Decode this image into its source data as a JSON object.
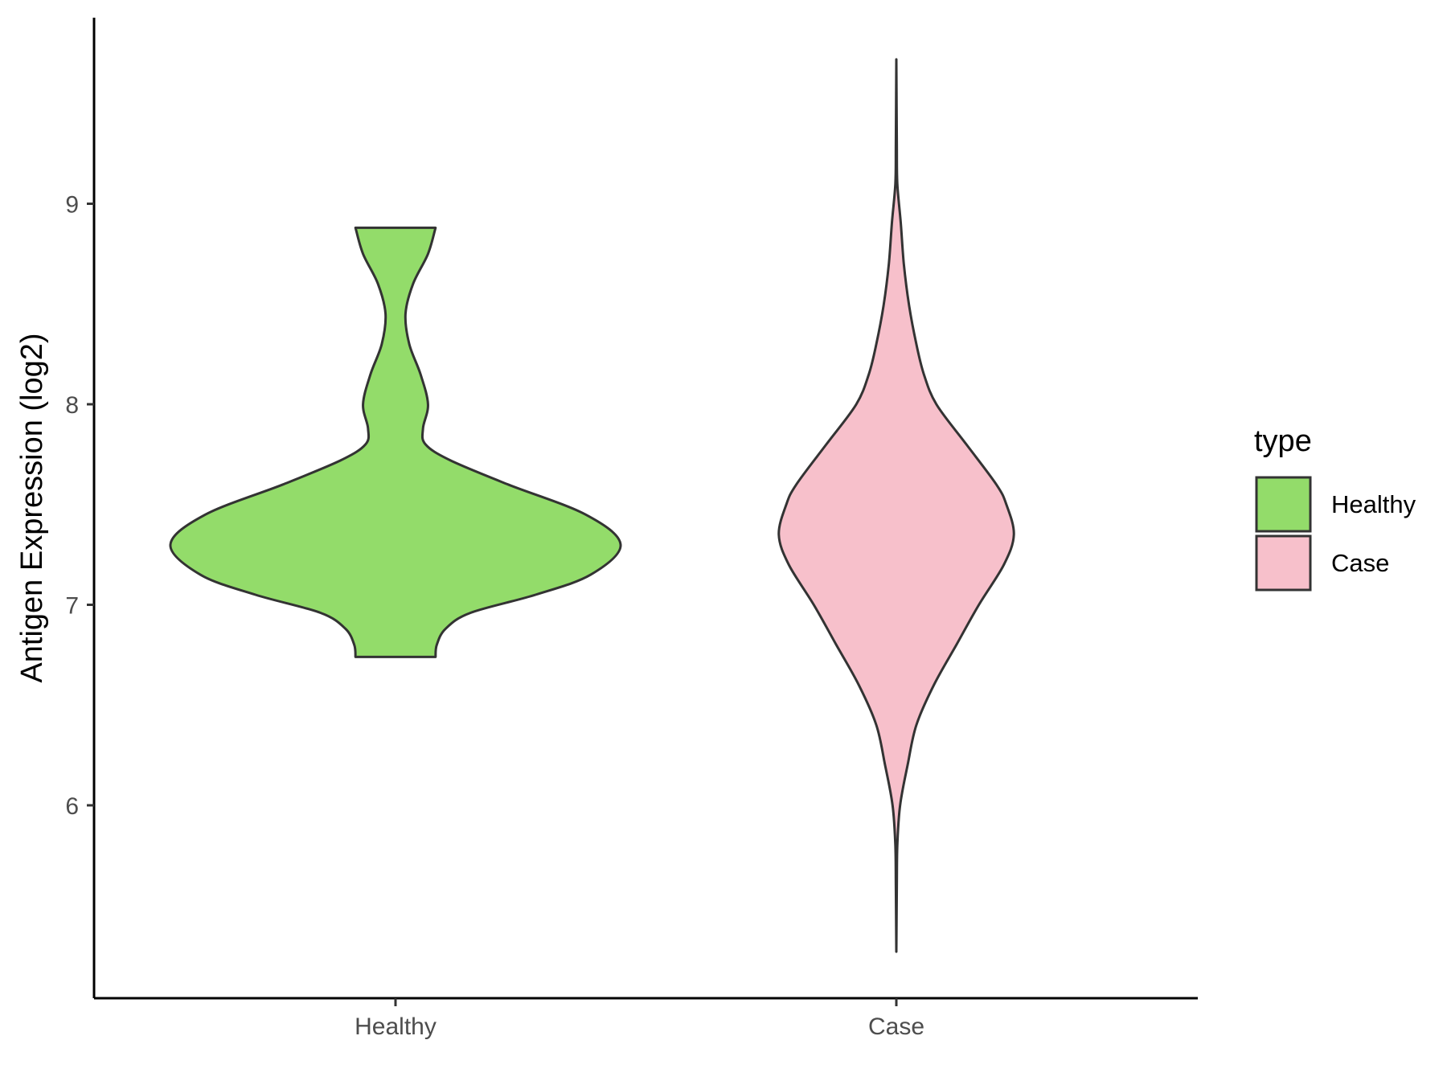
{
  "chart_data": {
    "type": "violin",
    "title": "",
    "xlabel": "",
    "ylabel": "Antigen Expression (log2)",
    "categories": [
      "Healthy",
      "Case"
    ],
    "yticks": [
      6,
      7,
      8,
      9
    ],
    "ylim": [
      5.05,
      9.93
    ],
    "grid": false,
    "legend": {
      "title": "type",
      "position": "right",
      "entries": [
        {
          "label": "Healthy",
          "color": "#93DC6A"
        },
        {
          "label": "Case",
          "color": "#F7C0CB"
        }
      ]
    },
    "series": [
      {
        "category": "Healthy",
        "color": "#93DC6A",
        "range": [
          6.74,
          8.88
        ],
        "density": [
          [
            6.74,
            0.16
          ],
          [
            6.8,
            0.165
          ],
          [
            6.88,
            0.2
          ],
          [
            6.96,
            0.3
          ],
          [
            7.05,
            0.56
          ],
          [
            7.15,
            0.78
          ],
          [
            7.3,
            0.9
          ],
          [
            7.45,
            0.76
          ],
          [
            7.6,
            0.45
          ],
          [
            7.72,
            0.22
          ],
          [
            7.8,
            0.12
          ],
          [
            7.88,
            0.11
          ],
          [
            8.0,
            0.13
          ],
          [
            8.15,
            0.1
          ],
          [
            8.3,
            0.055
          ],
          [
            8.45,
            0.04
          ],
          [
            8.6,
            0.07
          ],
          [
            8.75,
            0.13
          ],
          [
            8.88,
            0.16
          ]
        ]
      },
      {
        "category": "Case",
        "color": "#F7C0CB",
        "range": [
          5.27,
          9.72
        ],
        "density": [
          [
            5.27,
            0.0
          ],
          [
            5.6,
            0.002
          ],
          [
            5.8,
            0.004
          ],
          [
            6.0,
            0.015
          ],
          [
            6.2,
            0.045
          ],
          [
            6.4,
            0.08
          ],
          [
            6.6,
            0.15
          ],
          [
            6.8,
            0.24
          ],
          [
            7.0,
            0.33
          ],
          [
            7.2,
            0.43
          ],
          [
            7.35,
            0.47
          ],
          [
            7.5,
            0.44
          ],
          [
            7.6,
            0.4
          ],
          [
            7.8,
            0.28
          ],
          [
            8.0,
            0.16
          ],
          [
            8.15,
            0.11
          ],
          [
            8.3,
            0.08
          ],
          [
            8.5,
            0.05
          ],
          [
            8.7,
            0.03
          ],
          [
            8.9,
            0.018
          ],
          [
            9.1,
            0.004
          ],
          [
            9.3,
            0.002
          ],
          [
            9.72,
            0.0
          ]
        ]
      }
    ],
    "outline_color": "#333333"
  }
}
